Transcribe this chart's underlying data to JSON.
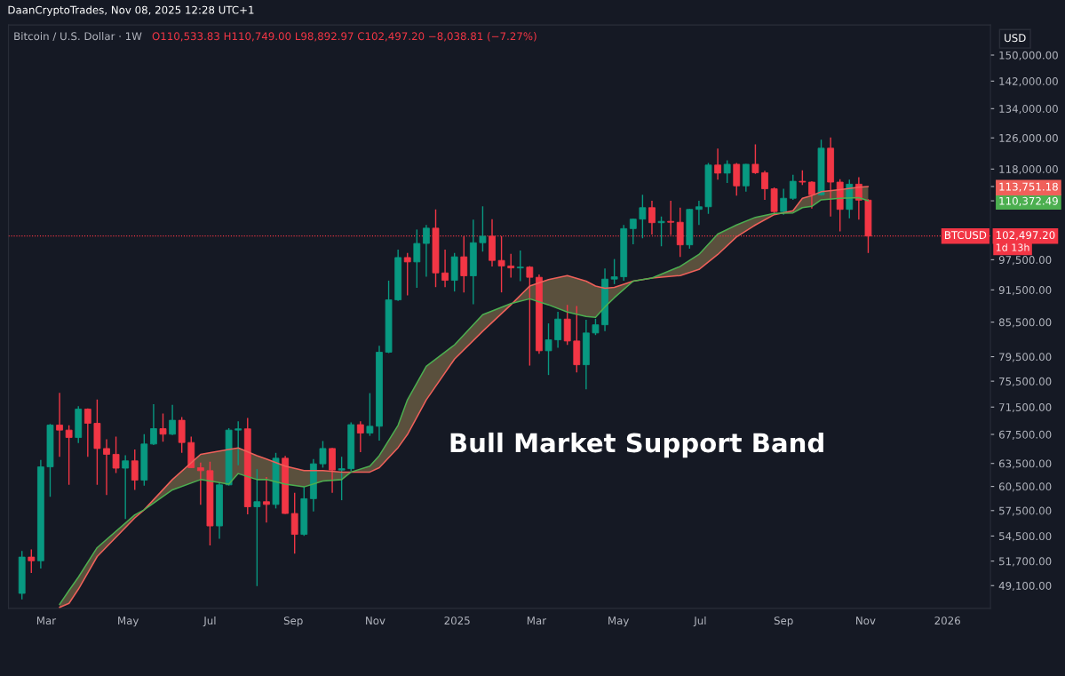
{
  "chart_data": {
    "type": "candlestick",
    "title": "Bitcoin / U.S. Dollar · 1W",
    "subtitle": "O110,533.83 H110,749.00 L98,892.97 C102,497.20 −8,038.81 (−7.27%)",
    "ylabel": "USD",
    "annotations": [
      "DaanCryptoTrades, Nov 08, 2025 12:28 UTC+1",
      "Bull Market Support Band",
      "1d 13h"
    ],
    "x": [
      "2024-02-12",
      "2024-02-19",
      "2024-02-26",
      "2024-03-04",
      "2024-03-11",
      "2024-03-18",
      "2024-03-25",
      "2024-04-01",
      "2024-04-08",
      "2024-04-15",
      "2024-04-22",
      "2024-04-29",
      "2024-05-06",
      "2024-05-13",
      "2024-05-20",
      "2024-05-27",
      "2024-06-03",
      "2024-06-10",
      "2024-06-17",
      "2024-06-24",
      "2024-07-01",
      "2024-07-08",
      "2024-07-15",
      "2024-07-22",
      "2024-07-29",
      "2024-08-05",
      "2024-08-12",
      "2024-08-19",
      "2024-08-26",
      "2024-09-02",
      "2024-09-09",
      "2024-09-16",
      "2024-09-23",
      "2024-09-30",
      "2024-10-07",
      "2024-10-14",
      "2024-10-21",
      "2024-10-28",
      "2024-11-04",
      "2024-11-11",
      "2024-11-18",
      "2024-11-25",
      "2024-12-02",
      "2024-12-09",
      "2024-12-16",
      "2024-12-23",
      "2024-12-30",
      "2025-01-06",
      "2025-01-13",
      "2025-01-20",
      "2025-01-27",
      "2025-02-03",
      "2025-02-10",
      "2025-02-17",
      "2025-02-24",
      "2025-03-03",
      "2025-03-10",
      "2025-03-17",
      "2025-03-24",
      "2025-03-31",
      "2025-04-07",
      "2025-04-14",
      "2025-04-21",
      "2025-04-28",
      "2025-05-05",
      "2025-05-12",
      "2025-05-19",
      "2025-05-26",
      "2025-06-02",
      "2025-06-09",
      "2025-06-16",
      "2025-06-23",
      "2025-06-30",
      "2025-07-07",
      "2025-07-14",
      "2025-07-21",
      "2025-07-28",
      "2025-08-04",
      "2025-08-11",
      "2025-08-18",
      "2025-08-25",
      "2025-09-01",
      "2025-09-08",
      "2025-09-15",
      "2025-09-22",
      "2025-09-29",
      "2025-10-06",
      "2025-10-13",
      "2025-10-20",
      "2025-10-27",
      "2025-11-03"
    ],
    "series": [
      {
        "value_labels": [
          null,
          null,
          null,
          null,
          null,
          null,
          null,
          null,
          null,
          null,
          null,
          null,
          null,
          null,
          null,
          null,
          null,
          null,
          null,
          null,
          null,
          null,
          null,
          null,
          null,
          null,
          null,
          null,
          null,
          null,
          null,
          null,
          null,
          null,
          null,
          null,
          null,
          null,
          null,
          null,
          null,
          null,
          null,
          null,
          null,
          null,
          null,
          null,
          null,
          null,
          null,
          null,
          null,
          null,
          null,
          null,
          null,
          null,
          null,
          null,
          null,
          null,
          null,
          null,
          null,
          null,
          null,
          null,
          null,
          null,
          null,
          null,
          null,
          null,
          null,
          null,
          null,
          null,
          null,
          null,
          null,
          null,
          null,
          null,
          null,
          null,
          null,
          null,
          null,
          null,
          "102,497.20"
        ],
        "colors": [
          "#089981",
          "#f23645",
          "#089981",
          "#089981",
          "#f23645",
          "#f23645",
          "#089981",
          "#f23645",
          "#f23645",
          "#f23645",
          "#f23645",
          "#089981",
          "#f23645",
          "#089981",
          "#089981",
          "#f23645",
          "#089981",
          "#f23645",
          "#f23645",
          "#f23645",
          "#f23645",
          "#089981",
          "#089981",
          "#089981",
          "#f23645",
          "#089981",
          "#f23645",
          "#089981",
          "#f23645",
          "#f23645",
          "#089981",
          "#089981",
          "#089981",
          "#f23645",
          "#089981",
          "#089981",
          "#f23645",
          "#089981",
          "#089981",
          "#089981",
          "#089981",
          "#f23645",
          "#089981",
          "#089981",
          "#f23645",
          "#f23645",
          "#089981",
          "#f23645",
          "#089981",
          "#089981",
          "#f23645",
          "#f23645",
          "#f23645",
          "#089981",
          "#f23645",
          "#f23645",
          "#089981",
          "#089981",
          "#f23645",
          "#f23645",
          "#089981",
          "#089981",
          "#089981",
          "#089981",
          "#089981",
          "#089981",
          "#089981",
          "#f23645",
          "#089981",
          "#f23645",
          "#f23645",
          "#089981",
          "#089981",
          "#089981",
          "#f23645",
          "#089981",
          "#f23645",
          "#089981",
          "#f23645",
          "#f23645",
          "#f23645",
          "#089981",
          "#089981",
          "#f23645",
          "#f23645",
          "#089981",
          "#f23645",
          "#f23645",
          "#089981",
          "#f23645",
          "#f23645"
        ],
        "ohlc": [
          [
            48300,
            52820,
            47700,
            52140
          ],
          [
            52140,
            52990,
            50420,
            51730
          ],
          [
            51730,
            63960,
            50900,
            63040
          ],
          [
            63040,
            69000,
            59200,
            68840
          ],
          [
            68840,
            73680,
            64400,
            68120
          ],
          [
            68120,
            68800,
            60700,
            67060
          ],
          [
            67060,
            71650,
            66270,
            71190
          ],
          [
            71190,
            71290,
            64400,
            69100
          ],
          [
            69100,
            72640,
            60700,
            65530
          ],
          [
            65530,
            66800,
            59430,
            64730
          ],
          [
            64730,
            67190,
            62230,
            62870
          ],
          [
            62870,
            64600,
            56500,
            63850
          ],
          [
            63850,
            65400,
            60060,
            61300
          ],
          [
            61300,
            67530,
            60600,
            66150
          ],
          [
            66150,
            71950,
            66000,
            68330
          ],
          [
            68330,
            70530,
            66480,
            67530
          ],
          [
            67530,
            71820,
            67400,
            69540
          ],
          [
            69540,
            70000,
            64930,
            66360
          ],
          [
            66360,
            67190,
            62900,
            62940
          ],
          [
            62940,
            63600,
            58220,
            62540
          ],
          [
            62540,
            63720,
            53430,
            55670
          ],
          [
            55670,
            61000,
            54200,
            60700
          ],
          [
            60700,
            68400,
            60600,
            68120
          ],
          [
            68120,
            69400,
            63260,
            68300
          ],
          [
            68300,
            69890,
            57050,
            57960
          ],
          [
            57960,
            62740,
            49050,
            58590
          ],
          [
            58590,
            61700,
            56080,
            58250
          ],
          [
            58250,
            64930,
            57760,
            64200
          ],
          [
            64200,
            64500,
            57100,
            57150
          ],
          [
            57150,
            59690,
            52530,
            54690
          ],
          [
            54690,
            60440,
            54530,
            58960
          ],
          [
            58960,
            64100,
            57400,
            63450
          ],
          [
            63450,
            66570,
            62940,
            65530
          ],
          [
            65530,
            65600,
            59690,
            62620
          ],
          [
            62620,
            64400,
            58770,
            62800
          ],
          [
            62800,
            69230,
            62500,
            68900
          ],
          [
            68900,
            69400,
            65020,
            67690
          ],
          [
            67690,
            73630,
            67300,
            68670
          ],
          [
            68670,
            81360,
            66630,
            80250
          ],
          [
            80250,
            93300,
            80100,
            89600
          ],
          [
            89600,
            99600,
            89400,
            97950
          ],
          [
            97950,
            98900,
            90450,
            97050
          ],
          [
            97050,
            103900,
            91900,
            100900
          ],
          [
            100900,
            104900,
            94060,
            104200
          ],
          [
            104200,
            108400,
            92040,
            94830
          ],
          [
            94830,
            99600,
            92040,
            93360
          ],
          [
            93360,
            98900,
            91190,
            98100
          ],
          [
            98100,
            102500,
            91020,
            94250
          ],
          [
            94250,
            106100,
            88770,
            101050
          ],
          [
            101050,
            109100,
            99180,
            102450
          ],
          [
            102450,
            106200,
            96130,
            97350
          ],
          [
            97350,
            102450,
            91020,
            96230
          ],
          [
            96230,
            98700,
            93900,
            95830
          ],
          [
            95830,
            99400,
            93200,
            96000
          ],
          [
            96000,
            96200,
            78020,
            93960
          ],
          [
            93960,
            94500,
            80000,
            80500
          ],
          [
            80500,
            85270,
            76490,
            82370
          ],
          [
            82370,
            87390,
            80990,
            86050
          ],
          [
            86050,
            88670,
            81480,
            82170
          ],
          [
            82170,
            88450,
            76920,
            78160
          ],
          [
            78160,
            85930,
            74240,
            83570
          ],
          [
            83570,
            86100,
            83200,
            85020
          ],
          [
            85020,
            95700,
            83900,
            93600
          ],
          [
            93600,
            97640,
            92610,
            94060
          ],
          [
            94060,
            104900,
            93300,
            104100
          ],
          [
            104100,
            106300,
            100700,
            106200
          ],
          [
            106200,
            111800,
            102000,
            108800
          ],
          [
            108800,
            110400,
            102800,
            105400
          ],
          [
            105400,
            106800,
            100300,
            105700
          ],
          [
            105700,
            110400,
            102700,
            105500
          ],
          [
            105500,
            108800,
            98070,
            100600
          ],
          [
            100600,
            108500,
            99800,
            108400
          ],
          [
            108400,
            110400,
            104900,
            109000
          ],
          [
            109000,
            119500,
            107400,
            119000
          ],
          [
            119000,
            123200,
            115400,
            117000
          ],
          [
            117000,
            120200,
            114600,
            119200
          ],
          [
            119200,
            119500,
            111600,
            113900
          ],
          [
            113900,
            119300,
            112500,
            119200
          ],
          [
            119200,
            124300,
            116800,
            117100
          ],
          [
            117100,
            117600,
            110600,
            113200
          ],
          [
            113200,
            113500,
            107600,
            107900
          ],
          [
            107900,
            113200,
            107200,
            110960
          ],
          [
            110960,
            116600,
            110600,
            115000
          ],
          [
            115000,
            117700,
            114100,
            114800
          ],
          [
            114800,
            115000,
            108600,
            111800
          ],
          [
            111800,
            125500,
            111600,
            123300
          ],
          [
            123300,
            126100,
            106800,
            114800
          ],
          [
            114800,
            115500,
            103500,
            108400
          ],
          [
            108400,
            115400,
            106400,
            114300
          ],
          [
            114300,
            116000,
            106100,
            110533.83
          ],
          [
            110533.83,
            110749.0,
            98892.97,
            102497.2
          ]
        ]
      },
      {
        "type": "line",
        "color": "#f0605a",
        "x": [
          "2024-03-11",
          "2024-03-18",
          "2024-03-25",
          "2024-04-08",
          "2024-05-06",
          "2024-05-13",
          "2024-06-03",
          "2024-06-24",
          "2024-07-15",
          "2024-07-22",
          "2024-08-05",
          "2024-08-12",
          "2024-08-26",
          "2024-09-09",
          "2024-09-23",
          "2024-10-07",
          "2024-10-14",
          "2024-10-28",
          "2024-11-04",
          "2024-11-18",
          "2024-11-25",
          "2024-12-09",
          "2024-12-30",
          "2025-01-20",
          "2025-02-10",
          "2025-02-24",
          "2025-03-10",
          "2025-03-24",
          "2025-04-07",
          "2025-04-14",
          "2025-04-21",
          "2025-04-28",
          "2025-05-12",
          "2025-05-26",
          "2025-06-16",
          "2025-06-30",
          "2025-07-14",
          "2025-07-28",
          "2025-08-11",
          "2025-08-25",
          "2025-09-08",
          "2025-09-15",
          "2025-09-22",
          "2025-09-29",
          "2025-10-13",
          "2025-10-27",
          "2025-11-03"
        ],
        "values": [
          46900,
          47300,
          48730,
          52200,
          56620,
          57600,
          61380,
          64730,
          65400,
          65600,
          64550,
          64100,
          63150,
          62540,
          62540,
          62360,
          62360,
          62360,
          62940,
          65650,
          67500,
          72600,
          79090,
          83880,
          88670,
          92250,
          93490,
          94310,
          93200,
          92250,
          91800,
          92000,
          93200,
          93800,
          94310,
          95530,
          98590,
          102300,
          104900,
          107200,
          108100,
          110960,
          111600,
          112500,
          113000,
          113600,
          113751.18
        ]
      },
      {
        "type": "line",
        "color": "#4caf50",
        "lower": [
          47200,
          48600,
          49980,
          53190,
          56980,
          57600,
          60060,
          61380,
          60800,
          62160,
          61380,
          61380,
          60800,
          60440,
          61200,
          61380,
          62360,
          63150,
          64550,
          68800,
          72600,
          77900,
          81500,
          86850,
          88900,
          89800,
          88670,
          87350,
          86520,
          86360,
          88300,
          90000,
          93200,
          93800,
          96130,
          98590,
          102920,
          104900,
          106600,
          107500,
          107600,
          108800,
          109100,
          110600,
          110960,
          111100,
          110372.49
        ],
        "upper": [
          46900,
          47300,
          48730,
          52200,
          56620,
          57600,
          61380,
          64730,
          65400,
          65600,
          64550,
          64100,
          63150,
          62540,
          62540,
          62360,
          62360,
          62360,
          62940,
          65650,
          67500,
          72600,
          79090,
          83880,
          88670,
          92250,
          93490,
          94310,
          93200,
          92250,
          91800,
          92000,
          93200,
          93800,
          94310,
          95530,
          98590,
          102300,
          104900,
          107200,
          108100,
          110960,
          111600,
          112500,
          113000,
          113600,
          113751.18
        ],
        "x": [
          "2024-03-11",
          "2024-03-18",
          "2024-03-25",
          "2024-04-08",
          "2024-05-06",
          "2024-05-13",
          "2024-06-03",
          "2024-06-24",
          "2024-07-15",
          "2024-07-22",
          "2024-08-05",
          "2024-08-12",
          "2024-08-26",
          "2024-09-09",
          "2024-09-23",
          "2024-10-07",
          "2024-10-14",
          "2024-10-28",
          "2024-11-04",
          "2024-11-18",
          "2024-11-25",
          "2024-12-09",
          "2024-12-30",
          "2025-01-20",
          "2025-02-10",
          "2025-02-24",
          "2025-03-10",
          "2025-03-24",
          "2025-04-07",
          "2025-04-14",
          "2025-04-21",
          "2025-04-28",
          "2025-05-12",
          "2025-05-26",
          "2025-06-16",
          "2025-06-30",
          "2025-07-14",
          "2025-07-28",
          "2025-08-11",
          "2025-08-25",
          "2025-09-08",
          "2025-09-15",
          "2025-09-22",
          "2025-09-29",
          "2025-10-13",
          "2025-10-27",
          "2025-11-03"
        ],
        "values": [
          47200,
          48600,
          49980,
          53190,
          56980,
          57600,
          60060,
          61380,
          60800,
          62160,
          61380,
          61380,
          60800,
          60440,
          61200,
          61380,
          62360,
          63150,
          64550,
          68800,
          72600,
          77900,
          81500,
          86850,
          88900,
          89800,
          88670,
          87350,
          86520,
          86360,
          88300,
          90000,
          93200,
          93800,
          96130,
          98590,
          102920,
          104900,
          106600,
          107500,
          107600,
          108800,
          109100,
          110600,
          110960,
          111100,
          110372.49
        ]
      }
    ],
    "ref_lines": [
      {
        "axis": "y",
        "value": 102497.2,
        "label": "BTCUSD",
        "color": "#f23645",
        "line_style": "dotted"
      }
    ],
    "log": true,
    "xlim": [
      "2024-02-02",
      "2026-02-02"
    ],
    "xticks": [
      {
        "value": "2024-03-01",
        "label": "Mar"
      },
      {
        "value": "2024-05-01",
        "label": "May"
      },
      {
        "value": "2024-07-01",
        "label": "Jul"
      },
      {
        "value": "2024-09-01",
        "label": "Sep"
      },
      {
        "value": "2024-11-01",
        "label": "Nov"
      },
      {
        "value": "2025-01-01",
        "label": "2025"
      },
      {
        "value": "2025-03-01",
        "label": "Mar"
      },
      {
        "value": "2025-05-01",
        "label": "May"
      },
      {
        "value": "2025-07-01",
        "label": "Jul"
      },
      {
        "value": "2025-09-01",
        "label": "Sep"
      },
      {
        "value": "2025-11-01",
        "label": "Nov"
      },
      {
        "value": "2026-01-01",
        "label": "2026"
      }
    ],
    "ylim": [
      46800,
      159800
    ],
    "yticks": [
      {
        "value": 49100,
        "label": "49,100.00"
      },
      {
        "value": 51700,
        "label": "51,700.00"
      },
      {
        "value": 54500,
        "label": "54,500.00"
      },
      {
        "value": 57500,
        "label": "57,500.00"
      },
      {
        "value": 60500,
        "label": "60,500.00"
      },
      {
        "value": 63500,
        "label": "63,500.00"
      },
      {
        "value": 67500,
        "label": "67,500.00"
      },
      {
        "value": 71500,
        "label": "71,500.00"
      },
      {
        "value": 75500,
        "label": "75,500.00"
      },
      {
        "value": 79500,
        "label": "79,500.00"
      },
      {
        "value": 85500,
        "label": "85,500.00"
      },
      {
        "value": 91500,
        "label": "91,500.00"
      },
      {
        "value": 97500,
        "label": "97,500.00"
      },
      {
        "value": 110372.49,
        "label": "110,372.49"
      },
      {
        "value": 113751.18,
        "label": "113,751.18"
      },
      {
        "value": 118000,
        "label": "118,000.00"
      },
      {
        "value": 126000,
        "label": "126,000.00"
      },
      {
        "value": 134000,
        "label": "134,000.00"
      },
      {
        "value": 142000,
        "label": "142,000.00"
      },
      {
        "value": 150000,
        "label": "150,000.00"
      }
    ],
    "grid": false,
    "legend": false
  }
}
